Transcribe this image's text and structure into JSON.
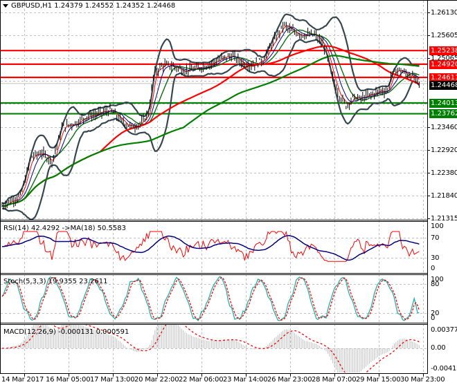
{
  "header": {
    "symbol": "GBPUSD,H1",
    "ohlc": "1.24379 1.24552 1.24352 1.24468",
    "full_title": "GBPUSD,H1  1.24379 1.24552 1.24352 1.24468"
  },
  "colors": {
    "background": "#ffffff",
    "grid": "#c0c0c0",
    "candles": "#000000",
    "bollinger": "#37474f",
    "ma_fast_red": "#ff0000",
    "ma_blue": "#000080",
    "ma_green_thin": "#008000",
    "ma_slow_red": "#ff0000",
    "ma_slow_green": "#008000",
    "resistance": "#ff0000",
    "support": "#008000",
    "rsi": "#ff0000",
    "rsi_ma": "#000080",
    "stoch_main": "#20b2aa",
    "stoch_signal": "#ff0000",
    "macd_hist": "#c0c0c0",
    "macd_signal": "#ff0000",
    "current_price_tag": "#000000"
  },
  "price_axis": {
    "ticks": [
      "1.26130",
      "1.25605",
      "1.25065",
      "1.24530",
      "1.23460",
      "1.22920",
      "1.22380",
      "1.21840",
      "1.21315"
    ],
    "visible_ticks": [
      "1.26130",
      "1.25605",
      "1.25065",
      "1.23460",
      "1.22920",
      "1.22380",
      "1.21840",
      "1.21315"
    ]
  },
  "price_tags": [
    {
      "value": "1.25238",
      "type": "resistance",
      "color": "#ff0000"
    },
    {
      "value": "1.24920",
      "type": "resistance",
      "color": "#ff0000"
    },
    {
      "value": "1.24611",
      "type": "resistance",
      "color": "#ff0000"
    },
    {
      "value": "1.24468",
      "type": "current",
      "color": "#000000"
    },
    {
      "value": "1.24013",
      "type": "support",
      "color": "#008000"
    },
    {
      "value": "1.23762",
      "type": "support",
      "color": "#008000"
    }
  ],
  "rsi": {
    "label": "RSI(14) 42.4292  ->MA(18) 50.5583",
    "ticks": [
      "100",
      "70",
      "30",
      "0"
    ]
  },
  "stoch": {
    "label": "Stoch(5,3,3) 19.9355 23.2611",
    "ticks": [
      "100",
      "80",
      "20",
      "0"
    ]
  },
  "macd": {
    "label": "MACD(12,26,9) -0.000131 0.000591",
    "ticks": [
      "0.003776",
      "0.00",
      "-0.004133"
    ]
  },
  "time_axis": {
    "labels": [
      "14 Mar 2017",
      "16 Mar 05:00",
      "17 Mar 13:00",
      "20 Mar 22:00",
      "22 Mar 06:00",
      "23 Mar 14:00",
      "26 Mar 23:00",
      "28 Mar 07:00",
      "29 Mar 15:00",
      "30 Mar 23:00"
    ]
  },
  "chart_data": [
    {
      "type": "line",
      "title": "GBPUSD,H1",
      "subtitle": "1.24379 1.24552 1.24352 1.24468",
      "xlabel": "",
      "ylabel": "",
      "ylim": [
        1.2129,
        1.264
      ],
      "x_tick_labels": [
        "14 Mar 2017",
        "16 Mar 05:00",
        "17 Mar 13:00",
        "20 Mar 22:00",
        "22 Mar 06:00",
        "23 Mar 14:00",
        "26 Mar 23:00",
        "28 Mar 07:00",
        "29 Mar 15:00",
        "30 Mar 23:00"
      ],
      "y_tick_labels": [
        "1.21315",
        "1.21840",
        "1.22380",
        "1.22920",
        "1.23460",
        "1.25065",
        "1.25605",
        "1.26130"
      ],
      "grid": true,
      "horizontal_levels": {
        "resistance": [
          1.25238,
          1.2492,
          1.24611
        ],
        "support": [
          1.24013,
          1.23762
        ],
        "current_price": 1.24468
      },
      "series": [
        {
          "name": "Close (approx.)",
          "x": [
            "14 Mar",
            "15 Mar",
            "16 Mar",
            "17 Mar",
            "20 Mar",
            "21 Mar",
            "22 Mar",
            "23 Mar",
            "24 Mar",
            "27 Mar",
            "28 Mar",
            "29 Mar",
            "30 Mar",
            "31 Mar"
          ],
          "values": [
            1.217,
            1.2235,
            1.2335,
            1.2385,
            1.2355,
            1.2475,
            1.249,
            1.251,
            1.249,
            1.259,
            1.2495,
            1.2425,
            1.246,
            1.2447
          ]
        },
        {
          "name": "MA slow red (approx.)",
          "values": [
            1.2175,
            1.22,
            1.2255,
            1.23,
            1.233,
            1.238,
            1.242,
            1.246,
            1.248,
            1.25,
            1.248,
            1.2465,
            1.246,
            1.246
          ]
        },
        {
          "name": "MA slow green (approx.)",
          "values": [
            1.221,
            1.2215,
            1.2225,
            1.2245,
            1.2275,
            1.231,
            1.2345,
            1.2375,
            1.24,
            1.2435,
            1.2455,
            1.2455,
            1.2458,
            1.2458
          ]
        }
      ]
    },
    {
      "type": "line",
      "title": "RSI(14) 42.4292 ->MA(18) 50.5583",
      "ylim": [
        0,
        100
      ],
      "y_tick_labels": [
        "0",
        "30",
        "70",
        "100"
      ],
      "levels": [
        30,
        70
      ],
      "series": [
        {
          "name": "RSI(14)",
          "last": 42.4292
        },
        {
          "name": "MA(18)",
          "last": 50.5583
        }
      ]
    },
    {
      "type": "line",
      "title": "Stoch(5,3,3) 19.9355 23.2611",
      "ylim": [
        0,
        100
      ],
      "y_tick_labels": [
        "0",
        "20",
        "80",
        "100"
      ],
      "levels": [
        20,
        80
      ],
      "series": [
        {
          "name": "%K",
          "last": 19.9355
        },
        {
          "name": "%D",
          "last": 23.2611
        }
      ]
    },
    {
      "type": "bar",
      "title": "MACD(12,26,9) -0.000131 0.000591",
      "ylim": [
        -0.004133,
        0.003776
      ],
      "y_tick_labels": [
        "-0.004133",
        "0.00",
        "0.003776"
      ],
      "series": [
        {
          "name": "MACD histogram",
          "last": -0.000131
        },
        {
          "name": "Signal",
          "last": 0.000591
        }
      ]
    }
  ]
}
